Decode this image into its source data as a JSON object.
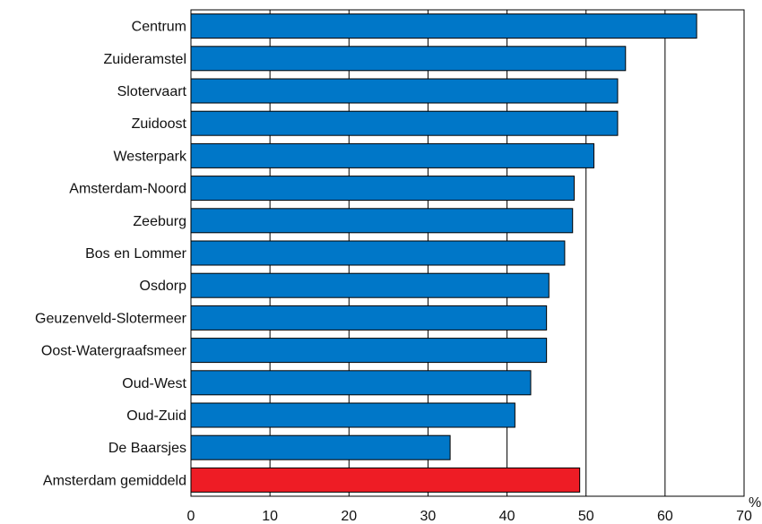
{
  "chart_data": {
    "type": "bar",
    "orientation": "horizontal",
    "categories": [
      "Centrum",
      "Zuideramstel",
      "Slotervaart",
      "Zuidoost",
      "Westerpark",
      "Amsterdam-Noord",
      "Zeeburg",
      "Bos en Lommer",
      "Osdorp",
      "Geuzenveld-Slotermeer",
      "Oost-Watergraafsmeer",
      "Oud-West",
      "Oud-Zuid",
      "De Baarsjes",
      "Amsterdam gemiddeld"
    ],
    "values": [
      64,
      55,
      54,
      54,
      51,
      48.5,
      48.3,
      47.3,
      45.3,
      45,
      45,
      43,
      41,
      32.8,
      49.2
    ],
    "highlight_index": 14,
    "xlim": [
      0,
      70
    ],
    "xticks": [
      0,
      10,
      20,
      30,
      40,
      50,
      60,
      70
    ],
    "x_unit": "%",
    "grid": "vertical-major",
    "legend": "none",
    "colors": {
      "bar": "#0077c8",
      "highlight": "#ee1c25",
      "grid": "#000000"
    }
  }
}
